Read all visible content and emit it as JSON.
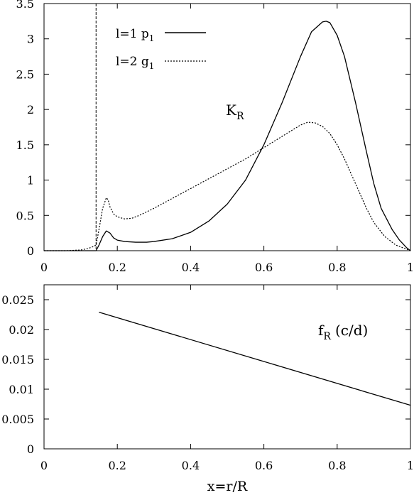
{
  "chart_data": [
    {
      "type": "line",
      "xlim": [
        0,
        1
      ],
      "ylim": [
        0,
        3.5
      ],
      "x_ticks": [
        "0",
        "0.2",
        "0.4",
        "0.6",
        "0.8",
        "1"
      ],
      "y_ticks": [
        "0",
        "0.5",
        "1",
        "1.5",
        "2",
        "2.5",
        "3",
        "3.5"
      ],
      "annotation": {
        "main": "K",
        "sub": "R"
      },
      "legend_position": "top-left",
      "vertical_marker_x": 0.142,
      "series": [
        {
          "name": {
            "main": "l=1 p",
            "sub": "1"
          },
          "style": "solid",
          "x": [
            0.0,
            0.1,
            0.135,
            0.142,
            0.15,
            0.16,
            0.17,
            0.18,
            0.19,
            0.2,
            0.22,
            0.25,
            0.28,
            0.3,
            0.35,
            0.4,
            0.45,
            0.5,
            0.55,
            0.6,
            0.65,
            0.7,
            0.73,
            0.76,
            0.77,
            0.78,
            0.8,
            0.82,
            0.85,
            0.88,
            0.9,
            0.92,
            0.95,
            0.97,
            0.99,
            1.0
          ],
          "y": [
            0.0,
            0.0,
            0.0,
            0.0,
            0.08,
            0.2,
            0.28,
            0.25,
            0.18,
            0.15,
            0.13,
            0.12,
            0.12,
            0.13,
            0.17,
            0.26,
            0.42,
            0.66,
            1.0,
            1.5,
            2.1,
            2.75,
            3.1,
            3.24,
            3.25,
            3.23,
            3.05,
            2.75,
            2.1,
            1.4,
            0.95,
            0.6,
            0.3,
            0.15,
            0.04,
            0.0
          ]
        },
        {
          "name": {
            "main": "l=2 g",
            "sub": "1"
          },
          "style": "dotted",
          "x": [
            0.0,
            0.06,
            0.1,
            0.12,
            0.135,
            0.142,
            0.15,
            0.16,
            0.17,
            0.175,
            0.18,
            0.19,
            0.2,
            0.22,
            0.24,
            0.26,
            0.3,
            0.35,
            0.4,
            0.45,
            0.5,
            0.55,
            0.6,
            0.65,
            0.7,
            0.72,
            0.74,
            0.76,
            0.78,
            0.8,
            0.82,
            0.85,
            0.88,
            0.9,
            0.93,
            0.96,
            0.99,
            1.0
          ],
          "y": [
            0.0,
            0.0,
            0.01,
            0.03,
            0.06,
            0.08,
            0.3,
            0.6,
            0.75,
            0.72,
            0.62,
            0.52,
            0.48,
            0.45,
            0.46,
            0.5,
            0.6,
            0.74,
            0.88,
            1.02,
            1.16,
            1.3,
            1.46,
            1.62,
            1.78,
            1.82,
            1.81,
            1.76,
            1.66,
            1.5,
            1.3,
            0.95,
            0.6,
            0.4,
            0.2,
            0.08,
            0.02,
            0.0
          ]
        }
      ]
    },
    {
      "type": "line",
      "xlim": [
        0,
        1
      ],
      "ylim": [
        0,
        0.0275
      ],
      "x_ticks": [
        "0",
        "0.2",
        "0.4",
        "0.6",
        "0.8",
        "1"
      ],
      "y_ticks": [
        "0",
        "0.005",
        "0.01",
        "0.015",
        "0.02",
        "0.025"
      ],
      "xlabel": "x=r/R",
      "annotation": {
        "main": "f",
        "sub": "R",
        "rest": "(c/d)"
      },
      "series": [
        {
          "style": "solid",
          "x": [
            0.15,
            1.0
          ],
          "y": [
            0.0229,
            0.0073
          ]
        }
      ]
    }
  ]
}
